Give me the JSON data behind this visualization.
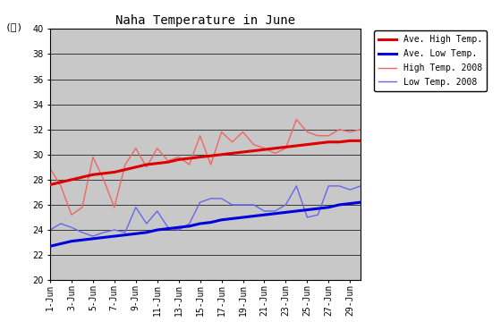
{
  "title": "Naha Temperature in June",
  "ylim": [
    20,
    40
  ],
  "yticks": [
    20,
    22,
    24,
    26,
    28,
    30,
    32,
    34,
    36,
    38,
    40
  ],
  "background_color": "#c8c8c8",
  "days": [
    1,
    2,
    3,
    4,
    5,
    6,
    7,
    8,
    9,
    10,
    11,
    12,
    13,
    14,
    15,
    16,
    17,
    18,
    19,
    20,
    21,
    22,
    23,
    24,
    25,
    26,
    27,
    28,
    29,
    30
  ],
  "xtick_labels": [
    "1-Jun",
    "3-Jun",
    "5-Jun",
    "7-Jun",
    "9-Jun",
    "11-Jun",
    "13-Jun",
    "15-Jun",
    "17-Jun",
    "19-Jun",
    "21-Jun",
    "23-Jun",
    "25-Jun",
    "27-Jun",
    "29-Jun"
  ],
  "xtick_positions": [
    1,
    3,
    5,
    7,
    9,
    11,
    13,
    15,
    17,
    19,
    21,
    23,
    25,
    27,
    29
  ],
  "ave_high": [
    27.6,
    27.8,
    28.0,
    28.2,
    28.4,
    28.5,
    28.6,
    28.8,
    29.0,
    29.2,
    29.3,
    29.4,
    29.6,
    29.7,
    29.8,
    29.9,
    30.0,
    30.1,
    30.2,
    30.3,
    30.4,
    30.5,
    30.6,
    30.7,
    30.8,
    30.9,
    31.0,
    31.0,
    31.1,
    31.1
  ],
  "ave_low": [
    22.7,
    22.9,
    23.1,
    23.2,
    23.3,
    23.4,
    23.5,
    23.6,
    23.7,
    23.8,
    24.0,
    24.1,
    24.2,
    24.3,
    24.5,
    24.6,
    24.8,
    24.9,
    25.0,
    25.1,
    25.2,
    25.3,
    25.4,
    25.5,
    25.6,
    25.7,
    25.8,
    26.0,
    26.1,
    26.2
  ],
  "high_2008": [
    28.9,
    27.5,
    25.2,
    25.8,
    29.8,
    28.0,
    25.8,
    29.2,
    30.5,
    29.0,
    30.5,
    29.5,
    29.8,
    29.2,
    31.5,
    29.2,
    31.8,
    31.0,
    31.8,
    30.8,
    30.5,
    30.1,
    30.5,
    32.8,
    31.8,
    31.5,
    31.5,
    32.0,
    31.8,
    32.0
  ],
  "low_2008": [
    24.0,
    24.5,
    24.2,
    23.8,
    23.5,
    23.8,
    24.0,
    23.8,
    25.8,
    24.5,
    25.5,
    24.2,
    24.0,
    24.5,
    26.2,
    26.5,
    26.5,
    26.0,
    26.0,
    26.0,
    25.5,
    25.5,
    26.0,
    27.5,
    25.0,
    25.2,
    27.5,
    27.5,
    27.2,
    27.5
  ],
  "ave_high_color": "#dd0000",
  "ave_low_color": "#0000dd",
  "high_2008_color": "#ee6666",
  "low_2008_color": "#6666ee",
  "ave_high_linewidth": 2.2,
  "ave_low_linewidth": 2.2,
  "high_2008_linewidth": 1.0,
  "low_2008_linewidth": 1.0,
  "legend_labels": [
    "Ave. High Temp.",
    "Ave. Low Temp.",
    "High Temp. 2008",
    "Low Temp. 2008"
  ],
  "unit_label": "(℃)"
}
